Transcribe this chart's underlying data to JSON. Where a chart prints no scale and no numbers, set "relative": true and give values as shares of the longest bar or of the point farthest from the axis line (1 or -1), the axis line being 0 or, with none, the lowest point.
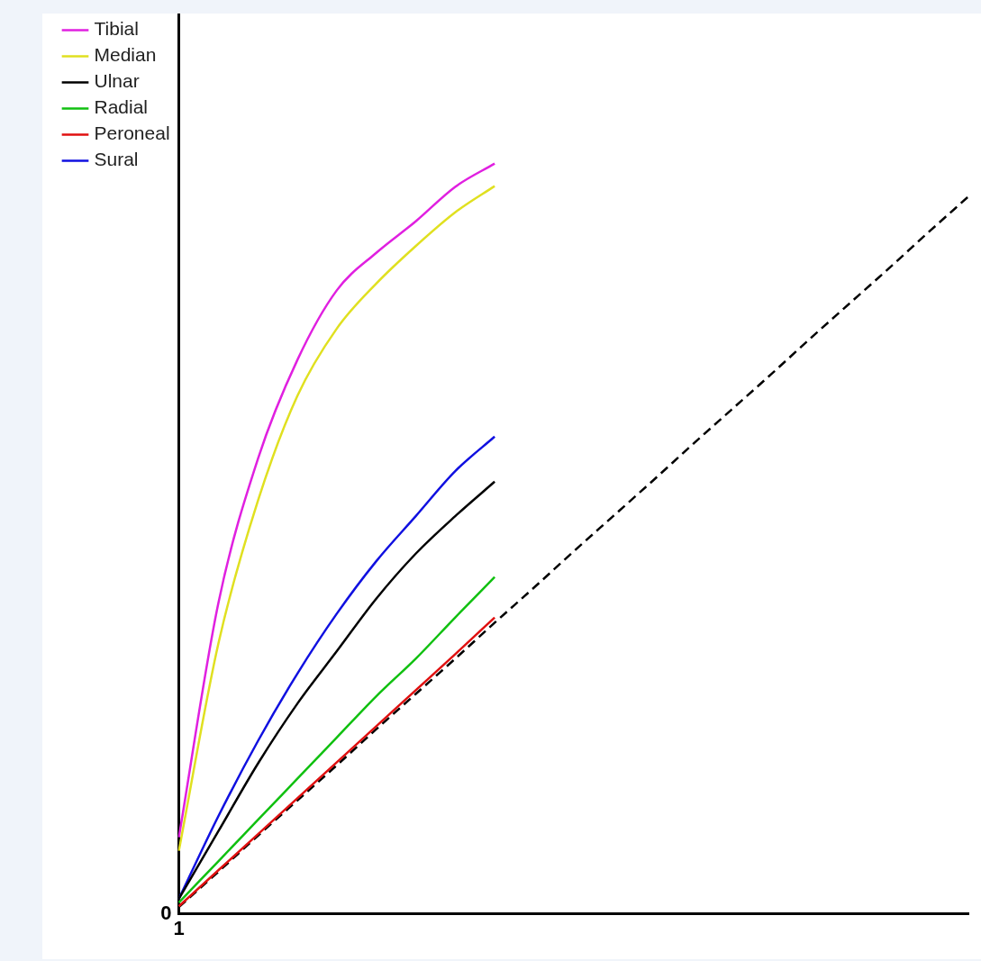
{
  "chart_data": {
    "type": "line",
    "relative": true,
    "categories": [
      null,
      null,
      null,
      null,
      null,
      null,
      null,
      null,
      null,
      null,
      null,
      null,
      null,
      null,
      null,
      null,
      null,
      null,
      null,
      null,
      null
    ],
    "series": [
      {
        "name": "Tibial",
        "color": "#e020e0",
        "values": [
          0.102,
          0.414,
          0.606,
          0.738,
          0.831,
          0.881,
          0.923,
          0.969,
          1.0,
          null,
          null,
          null,
          null,
          null,
          null,
          null,
          null,
          null,
          null,
          null,
          null
        ]
      },
      {
        "name": "Median",
        "color": "#e0e020",
        "values": [
          0.084,
          0.36,
          0.55,
          0.69,
          0.78,
          0.84,
          0.89,
          0.935,
          0.97,
          null,
          null,
          null,
          null,
          null,
          null,
          null,
          null,
          null,
          null,
          null,
          null
        ]
      },
      {
        "name": "Ulnar",
        "color": "#000000",
        "values": [
          0.02,
          0.11,
          0.2,
          0.28,
          0.35,
          0.42,
          0.48,
          0.53,
          0.576,
          null,
          null,
          null,
          null,
          null,
          null,
          null,
          null,
          null,
          null,
          null,
          null
        ]
      },
      {
        "name": "Radial",
        "color": "#10c010",
        "values": [
          0.015,
          0.07,
          0.125,
          0.18,
          0.235,
          0.29,
          0.34,
          0.395,
          0.449,
          null,
          null,
          null,
          null,
          null,
          null,
          null,
          null,
          null,
          null,
          null,
          null
        ]
      },
      {
        "name": "Peroneal",
        "color": "#e01010",
        "values": [
          0.01,
          0.058,
          0.106,
          0.154,
          0.202,
          0.25,
          0.298,
          0.346,
          0.395,
          null,
          null,
          null,
          null,
          null,
          null,
          null,
          null,
          null,
          null,
          null,
          null
        ]
      },
      {
        "name": "Sural",
        "color": "#1010e0",
        "values": [
          0.02,
          0.13,
          0.23,
          0.32,
          0.4,
          0.47,
          0.53,
          0.59,
          0.636,
          null,
          null,
          null,
          null,
          null,
          null,
          null,
          null,
          null,
          null,
          null,
          null
        ]
      },
      {
        "color": "#000000",
        "line_style": "dashed",
        "values": [
          0.009,
          0.056,
          0.104,
          0.151,
          0.198,
          0.246,
          0.293,
          0.34,
          0.388,
          0.435,
          0.483,
          0.53,
          0.577,
          0.625,
          0.672,
          0.719,
          0.767,
          0.814,
          0.861,
          0.909,
          0.956
        ]
      }
    ],
    "legend": "left",
    "grid": false,
    "marker": "none",
    "annotations": [
      "0",
      "1"
    ]
  }
}
